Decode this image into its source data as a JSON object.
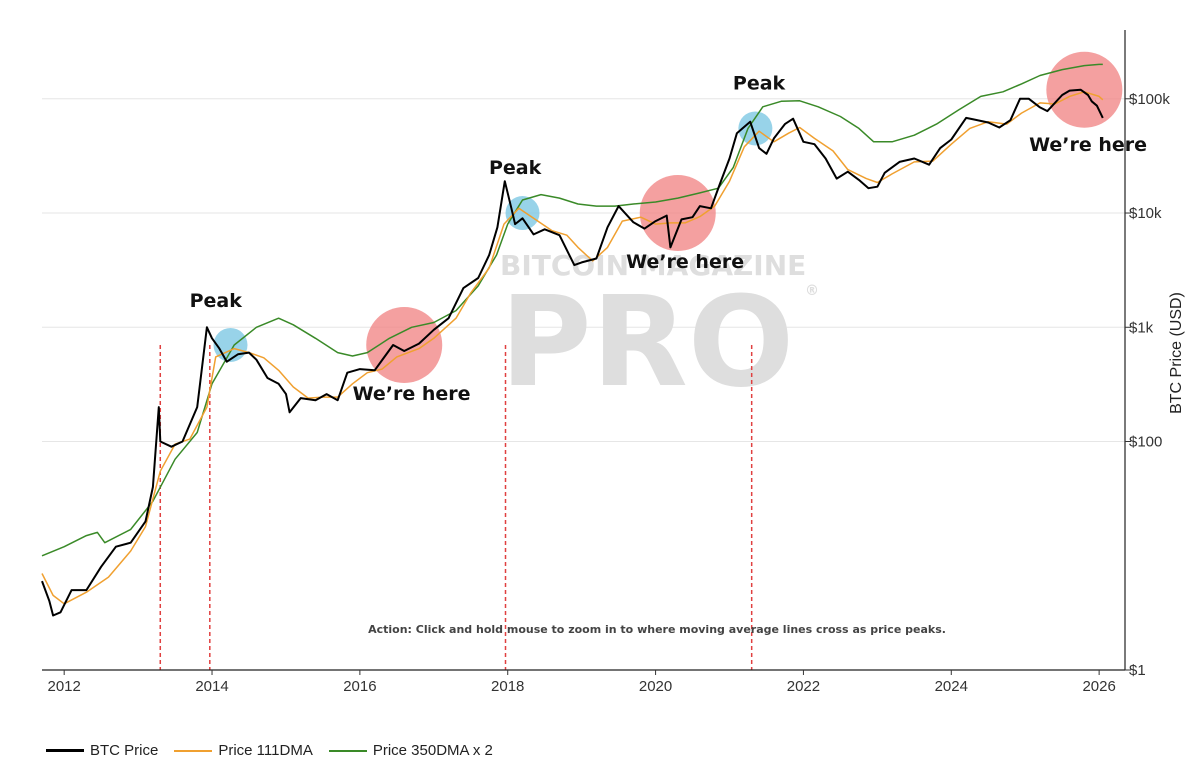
{
  "chart_data": {
    "type": "line",
    "ylabel": "BTC Price (USD)",
    "yscale": "log",
    "ylim": [
      1,
      400000
    ],
    "xlim": [
      2011.7,
      2026.35
    ],
    "x_ticks": [
      "2012",
      "2014",
      "2016",
      "2018",
      "2020",
      "2022",
      "2024",
      "2026"
    ],
    "y_ticks": [
      {
        "value": 100000,
        "label": "$100k"
      },
      {
        "value": 10000,
        "label": "$10k"
      },
      {
        "value": 1000,
        "label": "$1k"
      },
      {
        "value": 100,
        "label": "$100"
      },
      {
        "value": 1,
        "label": "$1"
      }
    ],
    "grid": true,
    "legend_position": "bottom-left",
    "colors": {
      "price": "#000000",
      "dma111": "#f0a030",
      "dma350x2": "#3a8a28",
      "peak_marker": "#7ec8e3",
      "here_marker": "#f08080",
      "vline": "#e04040"
    },
    "series": [
      {
        "name": "BTC Price",
        "key": "price",
        "points": [
          [
            2011.7,
            6
          ],
          [
            2011.8,
            4
          ],
          [
            2011.85,
            3
          ],
          [
            2011.95,
            3.2
          ],
          [
            2012.1,
            5
          ],
          [
            2012.3,
            5
          ],
          [
            2012.5,
            8
          ],
          [
            2012.7,
            12
          ],
          [
            2012.9,
            13
          ],
          [
            2013.1,
            20
          ],
          [
            2013.2,
            40
          ],
          [
            2013.28,
            200
          ],
          [
            2013.3,
            100
          ],
          [
            2013.45,
            90
          ],
          [
            2013.6,
            100
          ],
          [
            2013.8,
            200
          ],
          [
            2013.93,
            1000
          ],
          [
            2014.0,
            800
          ],
          [
            2014.1,
            650
          ],
          [
            2014.2,
            500
          ],
          [
            2014.35,
            580
          ],
          [
            2014.5,
            600
          ],
          [
            2014.6,
            520
          ],
          [
            2014.75,
            360
          ],
          [
            2014.9,
            320
          ],
          [
            2015.0,
            260
          ],
          [
            2015.05,
            180
          ],
          [
            2015.2,
            240
          ],
          [
            2015.4,
            230
          ],
          [
            2015.55,
            260
          ],
          [
            2015.7,
            230
          ],
          [
            2015.83,
            400
          ],
          [
            2016.0,
            430
          ],
          [
            2016.2,
            420
          ],
          [
            2016.45,
            700
          ],
          [
            2016.6,
            620
          ],
          [
            2016.8,
            720
          ],
          [
            2017.0,
            950
          ],
          [
            2017.2,
            1200
          ],
          [
            2017.4,
            2200
          ],
          [
            2017.6,
            2700
          ],
          [
            2017.75,
            4300
          ],
          [
            2017.86,
            7500
          ],
          [
            2017.96,
            19000
          ],
          [
            2018.05,
            11000
          ],
          [
            2018.1,
            8000
          ],
          [
            2018.2,
            9000
          ],
          [
            2018.35,
            6500
          ],
          [
            2018.5,
            7200
          ],
          [
            2018.7,
            6400
          ],
          [
            2018.9,
            3500
          ],
          [
            2019.0,
            3700
          ],
          [
            2019.2,
            4000
          ],
          [
            2019.35,
            7500
          ],
          [
            2019.5,
            11500
          ],
          [
            2019.7,
            8300
          ],
          [
            2019.85,
            7300
          ],
          [
            2020.0,
            8500
          ],
          [
            2020.15,
            9500
          ],
          [
            2020.2,
            5000
          ],
          [
            2020.35,
            8800
          ],
          [
            2020.5,
            9200
          ],
          [
            2020.6,
            11500
          ],
          [
            2020.75,
            11000
          ],
          [
            2020.87,
            18000
          ],
          [
            2021.0,
            30000
          ],
          [
            2021.1,
            50000
          ],
          [
            2021.28,
            63000
          ],
          [
            2021.4,
            37000
          ],
          [
            2021.5,
            33000
          ],
          [
            2021.6,
            45000
          ],
          [
            2021.75,
            60000
          ],
          [
            2021.86,
            67000
          ],
          [
            2022.0,
            42000
          ],
          [
            2022.15,
            40000
          ],
          [
            2022.3,
            30000
          ],
          [
            2022.45,
            20000
          ],
          [
            2022.6,
            23000
          ],
          [
            2022.75,
            19500
          ],
          [
            2022.88,
            16500
          ],
          [
            2023.0,
            17000
          ],
          [
            2023.1,
            22500
          ],
          [
            2023.3,
            28000
          ],
          [
            2023.5,
            30000
          ],
          [
            2023.7,
            26500
          ],
          [
            2023.85,
            37000
          ],
          [
            2024.0,
            44000
          ],
          [
            2024.2,
            68000
          ],
          [
            2024.3,
            66000
          ],
          [
            2024.5,
            62000
          ],
          [
            2024.65,
            56000
          ],
          [
            2024.8,
            65000
          ],
          [
            2024.93,
            100000
          ],
          [
            2025.05,
            100000
          ],
          [
            2025.2,
            84000
          ],
          [
            2025.3,
            78000
          ],
          [
            2025.5,
            108000
          ],
          [
            2025.6,
            118000
          ],
          [
            2025.75,
            120000
          ],
          [
            2025.85,
            108000
          ],
          [
            2025.9,
            95000
          ],
          [
            2025.97,
            87000
          ],
          [
            2026.05,
            68000
          ]
        ]
      },
      {
        "name": "Price 111DMA",
        "key": "dma111",
        "points": [
          [
            2011.7,
            7
          ],
          [
            2011.85,
            4.5
          ],
          [
            2012.0,
            3.8
          ],
          [
            2012.3,
            4.8
          ],
          [
            2012.6,
            6.5
          ],
          [
            2012.9,
            11
          ],
          [
            2013.1,
            18
          ],
          [
            2013.3,
            55
          ],
          [
            2013.5,
            95
          ],
          [
            2013.7,
            105
          ],
          [
            2013.93,
            200
          ],
          [
            2014.05,
            550
          ],
          [
            2014.3,
            650
          ],
          [
            2014.5,
            600
          ],
          [
            2014.7,
            540
          ],
          [
            2014.9,
            420
          ],
          [
            2015.1,
            300
          ],
          [
            2015.3,
            240
          ],
          [
            2015.5,
            245
          ],
          [
            2015.7,
            245
          ],
          [
            2015.9,
            320
          ],
          [
            2016.1,
            400
          ],
          [
            2016.3,
            430
          ],
          [
            2016.5,
            550
          ],
          [
            2016.8,
            650
          ],
          [
            2017.0,
            800
          ],
          [
            2017.3,
            1200
          ],
          [
            2017.5,
            2000
          ],
          [
            2017.75,
            3300
          ],
          [
            2017.95,
            8000
          ],
          [
            2018.15,
            11000
          ],
          [
            2018.35,
            9000
          ],
          [
            2018.6,
            7000
          ],
          [
            2018.8,
            6400
          ],
          [
            2018.95,
            5000
          ],
          [
            2019.15,
            3800
          ],
          [
            2019.35,
            5000
          ],
          [
            2019.55,
            8500
          ],
          [
            2019.8,
            9200
          ],
          [
            2020.0,
            8000
          ],
          [
            2020.2,
            8200
          ],
          [
            2020.4,
            8200
          ],
          [
            2020.6,
            9300
          ],
          [
            2020.8,
            11500
          ],
          [
            2021.0,
            19000
          ],
          [
            2021.2,
            38000
          ],
          [
            2021.4,
            52000
          ],
          [
            2021.6,
            42000
          ],
          [
            2021.8,
            50000
          ],
          [
            2021.95,
            56000
          ],
          [
            2022.15,
            45000
          ],
          [
            2022.4,
            35000
          ],
          [
            2022.6,
            24000
          ],
          [
            2022.85,
            20000
          ],
          [
            2023.0,
            18500
          ],
          [
            2023.2,
            22000
          ],
          [
            2023.5,
            28000
          ],
          [
            2023.75,
            28500
          ],
          [
            2024.0,
            40000
          ],
          [
            2024.25,
            55000
          ],
          [
            2024.5,
            63000
          ],
          [
            2024.75,
            60000
          ],
          [
            2024.95,
            75000
          ],
          [
            2025.2,
            92000
          ],
          [
            2025.4,
            90000
          ],
          [
            2025.6,
            105000
          ],
          [
            2025.8,
            115000
          ],
          [
            2026.0,
            105000
          ],
          [
            2026.05,
            98000
          ]
        ]
      },
      {
        "name": "Price 350DMA x 2",
        "key": "dma350x2",
        "points": [
          [
            2011.7,
            10
          ],
          [
            2012.0,
            12
          ],
          [
            2012.3,
            15
          ],
          [
            2012.45,
            16
          ],
          [
            2012.55,
            13
          ],
          [
            2012.9,
            17
          ],
          [
            2013.2,
            30
          ],
          [
            2013.5,
            70
          ],
          [
            2013.8,
            120
          ],
          [
            2014.0,
            320
          ],
          [
            2014.3,
            700
          ],
          [
            2014.6,
            1000
          ],
          [
            2014.9,
            1200
          ],
          [
            2015.1,
            1050
          ],
          [
            2015.4,
            800
          ],
          [
            2015.7,
            600
          ],
          [
            2015.9,
            560
          ],
          [
            2016.1,
            600
          ],
          [
            2016.4,
            800
          ],
          [
            2016.7,
            1000
          ],
          [
            2017.0,
            1100
          ],
          [
            2017.3,
            1400
          ],
          [
            2017.6,
            2300
          ],
          [
            2017.85,
            4300
          ],
          [
            2018.0,
            8000
          ],
          [
            2018.2,
            13000
          ],
          [
            2018.45,
            14500
          ],
          [
            2018.7,
            13500
          ],
          [
            2018.95,
            12000
          ],
          [
            2019.2,
            11500
          ],
          [
            2019.45,
            11500
          ],
          [
            2019.7,
            12000
          ],
          [
            2020.0,
            12500
          ],
          [
            2020.3,
            13500
          ],
          [
            2020.6,
            15000
          ],
          [
            2020.85,
            16500
          ],
          [
            2021.05,
            25000
          ],
          [
            2021.25,
            55000
          ],
          [
            2021.45,
            85000
          ],
          [
            2021.7,
            95000
          ],
          [
            2021.95,
            96000
          ],
          [
            2022.2,
            85000
          ],
          [
            2022.5,
            70000
          ],
          [
            2022.75,
            55000
          ],
          [
            2022.95,
            42000
          ],
          [
            2023.2,
            42000
          ],
          [
            2023.5,
            48000
          ],
          [
            2023.8,
            60000
          ],
          [
            2024.1,
            80000
          ],
          [
            2024.4,
            105000
          ],
          [
            2024.7,
            115000
          ],
          [
            2024.95,
            135000
          ],
          [
            2025.2,
            160000
          ],
          [
            2025.5,
            180000
          ],
          [
            2025.8,
            195000
          ],
          [
            2026.0,
            200000
          ],
          [
            2026.05,
            200000
          ]
        ]
      }
    ],
    "vertical_lines": [
      2013.3,
      2013.97,
      2017.97,
      2021.3
    ],
    "peak_markers": [
      {
        "x": 2014.25,
        "y": 700
      },
      {
        "x": 2018.2,
        "y": 10000
      },
      {
        "x": 2021.35,
        "y": 55000
      }
    ],
    "here_markers": [
      {
        "x": 2016.6,
        "y": 700
      },
      {
        "x": 2020.3,
        "y": 10000
      },
      {
        "x": 2025.8,
        "y": 120000
      }
    ],
    "annotations": [
      {
        "text": "Peak",
        "x": 2014.05,
        "y": 1500,
        "anchor": "middle"
      },
      {
        "text": "Peak",
        "x": 2018.1,
        "y": 22000,
        "anchor": "middle"
      },
      {
        "text": "Peak",
        "x": 2021.4,
        "y": 120000,
        "anchor": "middle"
      },
      {
        "text": "We’re here",
        "x": 2016.7,
        "y": 230,
        "anchor": "middle"
      },
      {
        "text": "We’re here",
        "x": 2020.4,
        "y": 3300,
        "anchor": "middle"
      },
      {
        "text": "We’re here",
        "x": 2025.85,
        "y": 35000,
        "anchor": "middle"
      }
    ],
    "note": "Action: Click and hold mouse to zoom in to where moving average lines cross as price peaks.",
    "watermark": {
      "top": "BITCOIN MAGAZINE",
      "main": "PRO",
      "mark": "®"
    }
  }
}
